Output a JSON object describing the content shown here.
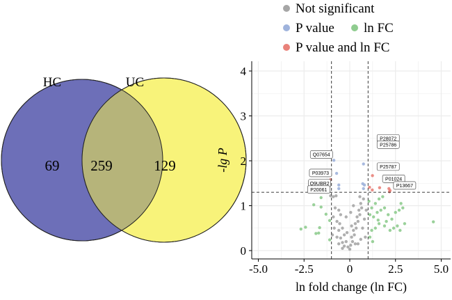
{
  "venn": {
    "sets": [
      {
        "name": "HC",
        "color": "#6d6fb8"
      },
      {
        "name": "UC",
        "color": "#f8f37a"
      }
    ],
    "overlap_color": "#b6b47a",
    "counts": {
      "HC_only": "69",
      "both": "259",
      "UC_only": "129"
    }
  },
  "chart_data": {
    "type": "scatter",
    "xlabel": "ln fold change (ln FC)",
    "ylabel": "-lg P",
    "xlim": [
      -5.5,
      5.5
    ],
    "ylim": [
      -0.2,
      4.3
    ],
    "xticks": [
      "-5.0",
      "-2.5",
      "0",
      "2.5",
      "5.0"
    ],
    "xtick_values": [
      -5,
      -2.5,
      0,
      2.5,
      5
    ],
    "yticks": [
      "0",
      "1",
      "2",
      "3",
      "4"
    ],
    "ytick_values": [
      0,
      1,
      2,
      3,
      4
    ],
    "grid": true,
    "legend_placement": "top",
    "thresholds": {
      "x": [
        -1,
        1
      ],
      "y": 1.3
    },
    "legend": [
      {
        "name": "Not significant",
        "color": "#a6a6a6"
      },
      {
        "name": "P value",
        "color": "#9fb3dc"
      },
      {
        "name": "ln FC",
        "color": "#8fcc8f"
      },
      {
        "name": "P value and ln FC",
        "color": "#e9827a"
      }
    ],
    "series": [
      {
        "name": "Not significant",
        "color": "#a6a6a6",
        "points": [
          [
            -0.9,
            1.2
          ],
          [
            -0.75,
            1.22
          ],
          [
            -0.8,
            0.95
          ],
          [
            -0.6,
            0.9
          ],
          [
            -0.5,
            0.8
          ],
          [
            -0.9,
            0.75
          ],
          [
            -0.7,
            0.65
          ],
          [
            -0.55,
            0.6
          ],
          [
            -0.85,
            0.5
          ],
          [
            -0.6,
            0.45
          ],
          [
            -0.4,
            0.5
          ],
          [
            -0.95,
            0.35
          ],
          [
            -0.7,
            0.3
          ],
          [
            -0.5,
            0.28
          ],
          [
            -0.3,
            0.35
          ],
          [
            -0.6,
            0.15
          ],
          [
            -0.4,
            0.18
          ],
          [
            -0.2,
            0.2
          ],
          [
            -0.3,
            0.1
          ],
          [
            -0.1,
            0.08
          ],
          [
            0,
            0.03
          ],
          [
            0.05,
            0.12
          ],
          [
            0.15,
            0.2
          ],
          [
            0.1,
            0.3
          ],
          [
            0.25,
            0.35
          ],
          [
            0.2,
            0.45
          ],
          [
            0.35,
            0.5
          ],
          [
            0.3,
            0.6
          ],
          [
            0.45,
            0.65
          ],
          [
            0.4,
            0.75
          ],
          [
            0.55,
            0.8
          ],
          [
            0.5,
            0.9
          ],
          [
            0.65,
            0.95
          ],
          [
            0.6,
            1.05
          ],
          [
            0.75,
            1.15
          ],
          [
            0.2,
            1.0
          ],
          [
            0.05,
            0.85
          ],
          [
            -0.2,
            0.75
          ],
          [
            0.8,
            0.7
          ],
          [
            0.7,
            0.5
          ],
          [
            0.85,
            0.3
          ],
          [
            0.6,
            0.25
          ],
          [
            0.45,
            0.15
          ],
          [
            -0.15,
            0.4
          ],
          [
            0.3,
            0.15
          ],
          [
            0.9,
            0.9
          ],
          [
            -1.05,
            1.22
          ],
          [
            -0.4,
            0.05
          ],
          [
            0.1,
            0.55
          ],
          [
            0.55,
            1.2
          ]
        ]
      },
      {
        "name": "P value",
        "color": "#9fb3dc",
        "points": [
          [
            -0.87,
            2.01
          ],
          [
            -0.72,
            1.72
          ],
          [
            0.75,
            1.93
          ],
          [
            -0.6,
            1.46
          ],
          [
            -0.6,
            1.38
          ],
          [
            0.71,
            1.49
          ],
          [
            0.8,
            1.46
          ],
          [
            0.75,
            1.38
          ]
        ]
      },
      {
        "name": "ln FC",
        "color": "#8fcc8f",
        "points": [
          [
            -1.57,
            1.18
          ],
          [
            -1.97,
            1.02
          ],
          [
            -1.57,
            0.97
          ],
          [
            -1.3,
            0.81
          ],
          [
            -2.67,
            0.48
          ],
          [
            -2.42,
            0.52
          ],
          [
            -1.65,
            0.51
          ],
          [
            -1.85,
            0.38
          ],
          [
            -1.7,
            0.39
          ],
          [
            -1.1,
            0.67
          ],
          [
            -1.1,
            0.24
          ],
          [
            4.57,
            0.64
          ],
          [
            1.05,
            1.1
          ],
          [
            1.2,
            0.95
          ],
          [
            1.4,
            1.05
          ],
          [
            1.6,
            1.15
          ],
          [
            1.8,
            1.2
          ],
          [
            1.1,
            0.8
          ],
          [
            1.3,
            0.75
          ],
          [
            1.5,
            0.85
          ],
          [
            1.7,
            0.9
          ],
          [
            1.9,
            0.95
          ],
          [
            2.1,
            0.8
          ],
          [
            2.3,
            0.7
          ],
          [
            2.5,
            0.85
          ],
          [
            2.7,
            0.9
          ],
          [
            2.8,
            1.05
          ],
          [
            2.9,
            0.95
          ],
          [
            3.0,
            0.6
          ],
          [
            2.6,
            0.55
          ],
          [
            2.4,
            0.5
          ],
          [
            2.2,
            0.45
          ],
          [
            1.9,
            0.55
          ],
          [
            1.6,
            0.6
          ],
          [
            1.4,
            0.5
          ],
          [
            1.2,
            0.45
          ],
          [
            1.1,
            0.3
          ],
          [
            1.25,
            0.2
          ],
          [
            2.0,
            0.65
          ],
          [
            2.75,
            0.45
          ],
          [
            1.55,
            0.68
          ]
        ]
      },
      {
        "name": "P value and ln FC",
        "color": "#e9827a",
        "points": [
          [
            -1.05,
            1.58
          ],
          [
            1.24,
            1.67
          ],
          [
            2.09,
            1.55
          ],
          [
            1.08,
            1.41
          ],
          [
            1.23,
            1.35
          ],
          [
            1.63,
            1.4
          ],
          [
            2.14,
            1.38
          ],
          [
            2.2,
            1.34
          ],
          [
            2.17,
            1.31
          ]
        ]
      }
    ],
    "annotations": [
      {
        "text": "P28072",
        "x": 2.1,
        "y": 2.5
      },
      {
        "text": "P25786",
        "x": 2.1,
        "y": 2.36
      },
      {
        "text": "Q07654",
        "x": -1.55,
        "y": 2.14
      },
      {
        "text": "P25787",
        "x": 2.1,
        "y": 1.87
      },
      {
        "text": "P03973",
        "x": -1.6,
        "y": 1.73
      },
      {
        "text": "P01024",
        "x": 2.4,
        "y": 1.6
      },
      {
        "text": "Q9UBR2",
        "x": -1.65,
        "y": 1.5
      },
      {
        "text": "P20061",
        "x": -1.7,
        "y": 1.36
      },
      {
        "text": "P13667",
        "x": 3.0,
        "y": 1.45
      }
    ]
  }
}
